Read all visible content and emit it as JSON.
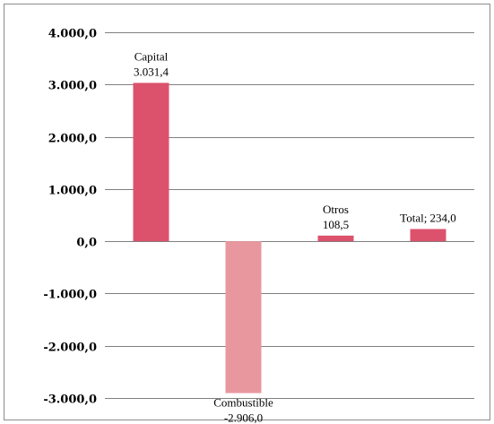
{
  "chart_data": {
    "type": "bar",
    "title": "",
    "xlabel": "",
    "ylabel": "",
    "categories": [
      "Capital",
      "Combustible",
      "Otros",
      "Total"
    ],
    "values": [
      3031.4,
      -2906.0,
      108.5,
      234.0
    ],
    "data_labels": [
      [
        "Capital",
        "3.031,4"
      ],
      [
        "Combustible",
        "-2.906,0"
      ],
      [
        "Otros",
        "108,5"
      ],
      [
        "Total; 234,0"
      ]
    ],
    "ylim": [
      -3000,
      4000
    ],
    "yticks": [
      4000,
      3000,
      2000,
      1000,
      0,
      -1000,
      -2000,
      -3000
    ],
    "ytick_labels": [
      "4.000,0",
      "3.000,0",
      "2.000,0",
      "1.000,0",
      "0,0",
      "-1.000,0",
      "-2.000,0",
      "-3.000,0"
    ],
    "grid": true,
    "legend": "none",
    "colors": {
      "positive": "#dc526c",
      "negative": "#e9979f",
      "grid": "#808080",
      "frame": "#8c8c8c"
    }
  }
}
